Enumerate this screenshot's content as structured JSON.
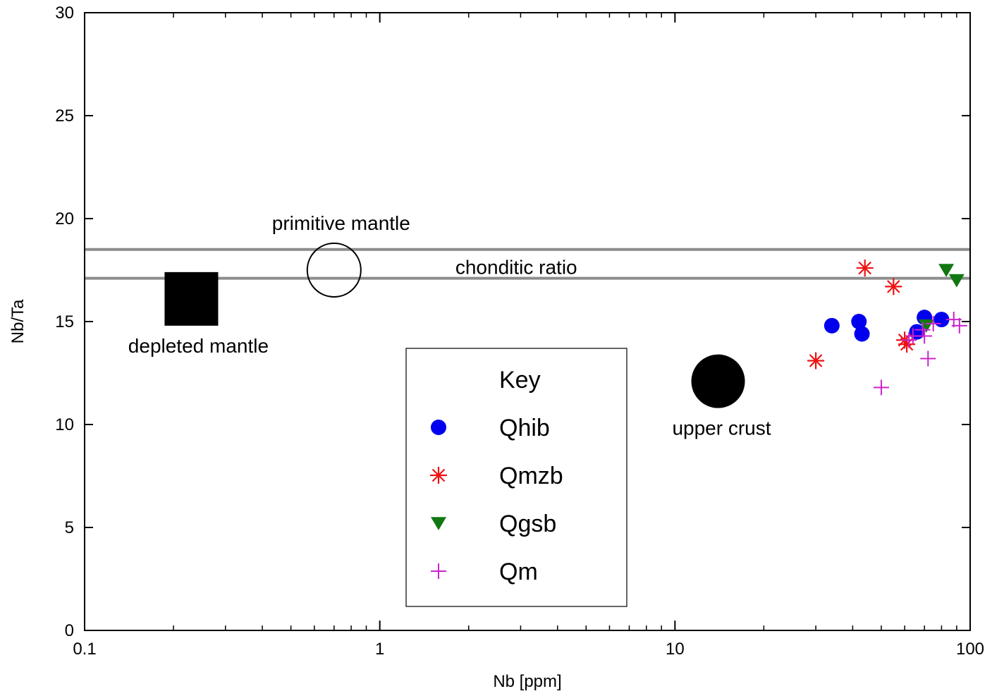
{
  "chart_data": {
    "type": "scatter",
    "title": "",
    "xlabel": "Nb [ppm]",
    "ylabel": "Nb/Ta",
    "xscale": "log",
    "xlim": [
      0.1,
      100
    ],
    "ylim": [
      0,
      30
    ],
    "xticks": [
      0.1,
      1,
      10,
      100
    ],
    "xtick_labels": [
      "0.1",
      "1",
      "10",
      "100"
    ],
    "yticks": [
      0,
      5,
      10,
      15,
      20,
      25,
      30
    ],
    "ytick_labels": [
      "0",
      "5",
      "10",
      "15",
      "20",
      "25",
      "30"
    ],
    "grid": false,
    "legend": {
      "title": "Key",
      "placement": "bottom-center"
    },
    "reference_lines": [
      {
        "y": 18.5,
        "color": "#8c8c8c"
      },
      {
        "y": 17.1,
        "color": "#8c8c8c"
      }
    ],
    "annotations": [
      {
        "text": "primitive mantle",
        "x": 0.7,
        "y": 17.5,
        "marker": "open-circle"
      },
      {
        "text": "chonditic ratio",
        "x": 2.9,
        "y": 17.1,
        "marker": "none"
      },
      {
        "text": "depleted mantle",
        "x": 0.23,
        "y": 16.1,
        "marker": "filled-square"
      },
      {
        "text": "upper crust",
        "x": 14,
        "y": 12.1,
        "marker": "filled-circle"
      }
    ],
    "series": [
      {
        "name": "Qhib",
        "marker": "circle",
        "color": "#0000ee",
        "points": [
          [
            34,
            14.8
          ],
          [
            42,
            15.0
          ],
          [
            43,
            14.4
          ],
          [
            70,
            15.2
          ],
          [
            80,
            15.1
          ],
          [
            66,
            14.5
          ]
        ]
      },
      {
        "name": "Qmzb",
        "marker": "asterisk",
        "color": "#ee1111",
        "points": [
          [
            44,
            17.6
          ],
          [
            55,
            16.7
          ],
          [
            30,
            13.1
          ],
          [
            60,
            14.1
          ],
          [
            61,
            13.9
          ]
        ]
      },
      {
        "name": "Qgsb",
        "marker": "triangle-down",
        "color": "#117711",
        "points": [
          [
            83,
            17.5
          ],
          [
            90,
            17.0
          ],
          [
            71,
            14.8
          ]
        ]
      },
      {
        "name": "Qm",
        "marker": "plus",
        "color": "#cc22cc",
        "points": [
          [
            50,
            11.8
          ],
          [
            72,
            13.2
          ],
          [
            70,
            14.3
          ],
          [
            64,
            14.3
          ],
          [
            62,
            14.1
          ],
          [
            75,
            14.9
          ],
          [
            88,
            15.1
          ],
          [
            92,
            14.8
          ],
          [
            69,
            14.6
          ]
        ]
      }
    ]
  }
}
